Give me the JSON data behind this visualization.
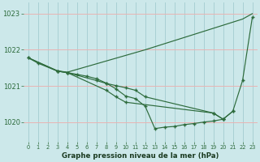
{
  "title": "Graphe pression niveau de la mer (hPa)",
  "ylim": [
    1019.45,
    1023.3
  ],
  "yticks": [
    1020,
    1021,
    1022,
    1023
  ],
  "bg_color": "#cce8ea",
  "line_color": "#2d6b3c",
  "grid_color_h": "#e8b4b4",
  "grid_color_v": "#a8d0d4",
  "line_upper_x": [
    0,
    3,
    4,
    12,
    22,
    23
  ],
  "line_upper_y": [
    1021.78,
    1021.42,
    1021.38,
    1022.0,
    1022.85,
    1023.0
  ],
  "line_main_x": [
    0,
    1,
    3,
    4,
    5,
    6,
    7,
    8,
    9,
    10,
    11,
    12,
    13,
    14,
    15,
    16,
    17,
    18,
    19,
    20,
    21,
    22,
    23
  ],
  "line_main_y": [
    1021.78,
    1021.63,
    1021.41,
    1021.37,
    1021.32,
    1021.27,
    1021.2,
    1021.08,
    1020.92,
    1020.72,
    1020.65,
    1020.44,
    1019.82,
    1019.86,
    1019.88,
    1019.93,
    1019.96,
    1020.0,
    1020.03,
    1020.08,
    1020.3,
    1021.15,
    1022.9
  ],
  "line_mid_x": [
    0,
    3,
    4,
    8,
    9,
    10,
    19,
    20
  ],
  "line_mid_y": [
    1021.78,
    1021.41,
    1021.37,
    1020.88,
    1020.7,
    1020.55,
    1020.25,
    1020.08
  ],
  "line_lower_x": [
    3,
    4,
    7,
    8,
    9,
    10,
    11,
    12,
    19,
    20,
    21
  ],
  "line_lower_y": [
    1021.41,
    1021.37,
    1021.15,
    1021.07,
    1021.01,
    1020.95,
    1020.88,
    1020.7,
    1020.25,
    1020.08,
    1020.3
  ]
}
